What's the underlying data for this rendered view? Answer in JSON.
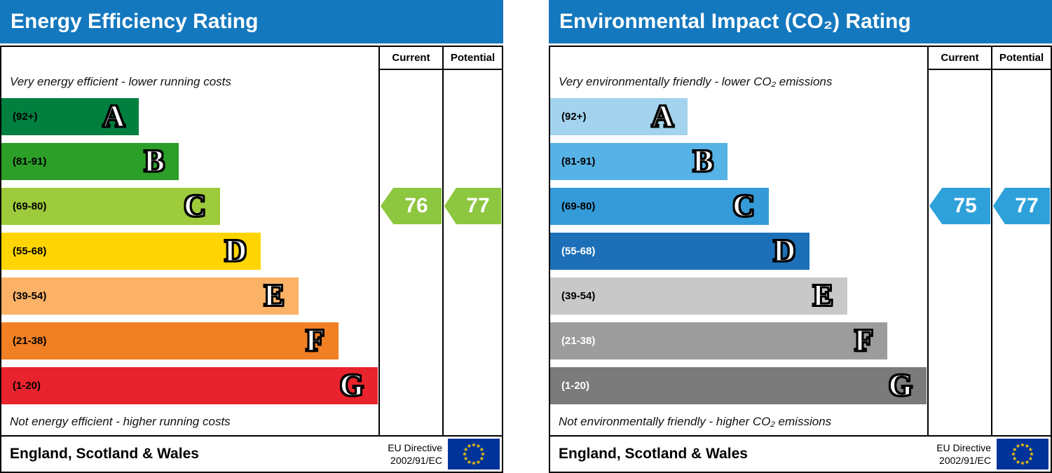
{
  "flag": {
    "bg": "#003399",
    "star": "#ffcc00"
  },
  "charts": [
    {
      "title": "Energy Efficiency Rating",
      "header_bg": "#1478be",
      "header": {
        "current": "Current",
        "potential": "Potential"
      },
      "top_note": "Very energy efficient - lower running costs",
      "bottom_note": "Not energy efficient - higher running costs",
      "bands": [
        {
          "letter": "A",
          "range": "(92+)",
          "color": "#007f3f",
          "width_pct": 36.5,
          "label_color": "#000000"
        },
        {
          "letter": "B",
          "range": "(81-91)",
          "color": "#2c9f29",
          "width_pct": 47.0,
          "label_color": "#000000"
        },
        {
          "letter": "C",
          "range": "(69-80)",
          "color": "#9dcb3c",
          "width_pct": 58.0,
          "label_color": "#000000"
        },
        {
          "letter": "D",
          "range": "(55-68)",
          "color": "#fed502",
          "width_pct": 68.8,
          "label_color": "#000000"
        },
        {
          "letter": "E",
          "range": "(39-54)",
          "color": "#fbb267",
          "width_pct": 78.8,
          "label_color": "#000000"
        },
        {
          "letter": "F",
          "range": "(21-38)",
          "color": "#f08023",
          "width_pct": 89.4,
          "label_color": "#000000"
        },
        {
          "letter": "G",
          "range": "(1-20)",
          "color": "#e9232d",
          "width_pct": 99.8,
          "label_color": "#000000"
        }
      ],
      "current": {
        "value": "76",
        "band": "C",
        "color": "#8dc63f"
      },
      "potential": {
        "value": "77",
        "band": "C",
        "color": "#8dc63f"
      },
      "footer": {
        "region": "England, Scotland & Wales",
        "directive_line1": "EU Directive",
        "directive_line2": "2002/91/EC"
      }
    },
    {
      "title": "Environmental Impact (CO₂) Rating",
      "header_bg": "#1478be",
      "header": {
        "current": "Current",
        "potential": "Potential"
      },
      "top_note": "Very environmentally friendly - lower CO₂ emissions",
      "bottom_note": "Not environmentally friendly - higher CO₂ emissions",
      "bands": [
        {
          "letter": "A",
          "range": "(92+)",
          "color": "#a3d3ee",
          "width_pct": 36.5,
          "label_color": "#000000"
        },
        {
          "letter": "B",
          "range": "(81-91)",
          "color": "#57b2e5",
          "width_pct": 47.0,
          "label_color": "#000000"
        },
        {
          "letter": "C",
          "range": "(69-80)",
          "color": "#359bd8",
          "width_pct": 58.0,
          "label_color": "#000000"
        },
        {
          "letter": "D",
          "range": "(55-68)",
          "color": "#1d70b8",
          "width_pct": 68.8,
          "label_color": "#ffffff"
        },
        {
          "letter": "E",
          "range": "(39-54)",
          "color": "#c8c8c8",
          "width_pct": 78.8,
          "label_color": "#000000"
        },
        {
          "letter": "F",
          "range": "(21-38)",
          "color": "#9c9c9c",
          "width_pct": 89.4,
          "label_color": "#ffffff"
        },
        {
          "letter": "G",
          "range": "(1-20)",
          "color": "#7b7b7b",
          "width_pct": 99.8,
          "label_color": "#ffffff"
        }
      ],
      "current": {
        "value": "75",
        "band": "C",
        "color": "#2fa1da"
      },
      "potential": {
        "value": "77",
        "band": "C",
        "color": "#2fa1da"
      },
      "footer": {
        "region": "England, Scotland & Wales",
        "directive_line1": "EU Directive",
        "directive_line2": "2002/91/EC"
      }
    }
  ],
  "chart_data": [
    {
      "type": "bar",
      "title": "Energy Efficiency Rating",
      "categories": [
        "A",
        "B",
        "C",
        "D",
        "E",
        "F",
        "G"
      ],
      "band_ranges": [
        "92+",
        "81-91",
        "69-80",
        "55-68",
        "39-54",
        "21-38",
        "1-20"
      ],
      "current": 76,
      "potential": 77,
      "current_band": "C",
      "potential_band": "C",
      "top_note": "Very energy efficient - lower running costs",
      "bottom_note": "Not energy efficient - higher running costs",
      "region": "England, Scotland & Wales",
      "directive": "EU Directive 2002/91/EC"
    },
    {
      "type": "bar",
      "title": "Environmental Impact (CO₂) Rating",
      "categories": [
        "A",
        "B",
        "C",
        "D",
        "E",
        "F",
        "G"
      ],
      "band_ranges": [
        "92+",
        "81-91",
        "69-80",
        "55-68",
        "39-54",
        "21-38",
        "1-20"
      ],
      "current": 75,
      "potential": 77,
      "current_band": "C",
      "potential_band": "C",
      "top_note": "Very environmentally friendly - lower CO₂ emissions",
      "bottom_note": "Not environmentally friendly - higher CO₂ emissions",
      "region": "England, Scotland & Wales",
      "directive": "EU Directive 2002/91/EC"
    }
  ]
}
